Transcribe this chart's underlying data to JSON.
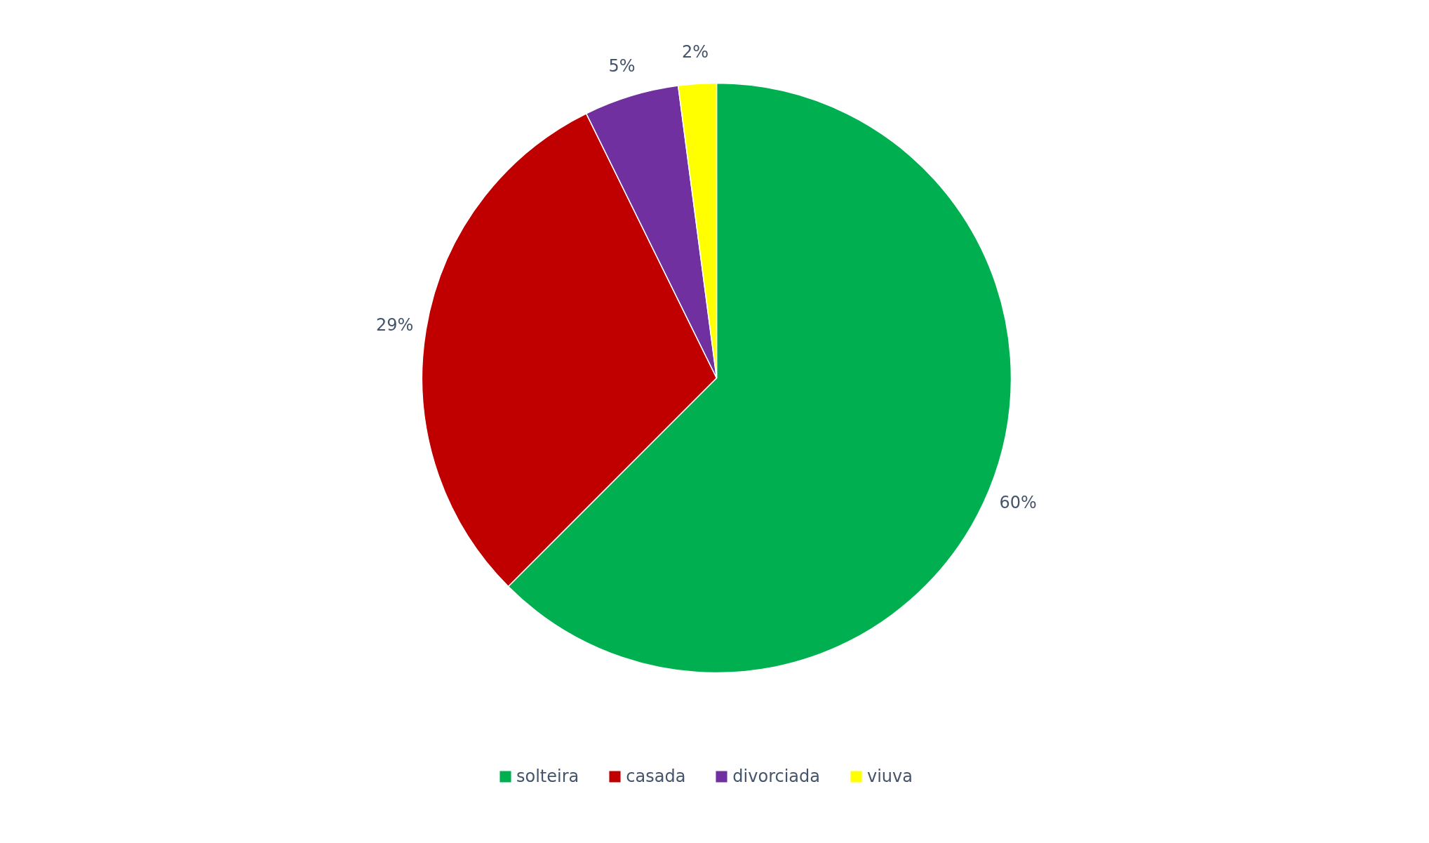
{
  "chart_data": {
    "type": "pie",
    "categories": [
      "solteira",
      "casada",
      "divorciada",
      "viuva"
    ],
    "values": [
      60,
      29,
      5,
      2
    ],
    "colors": [
      "#00b050",
      "#c00000",
      "#7030a0",
      "#ffff00"
    ],
    "value_labels": [
      "60%",
      "29%",
      "5%",
      "2%"
    ],
    "legend": "bottom"
  }
}
